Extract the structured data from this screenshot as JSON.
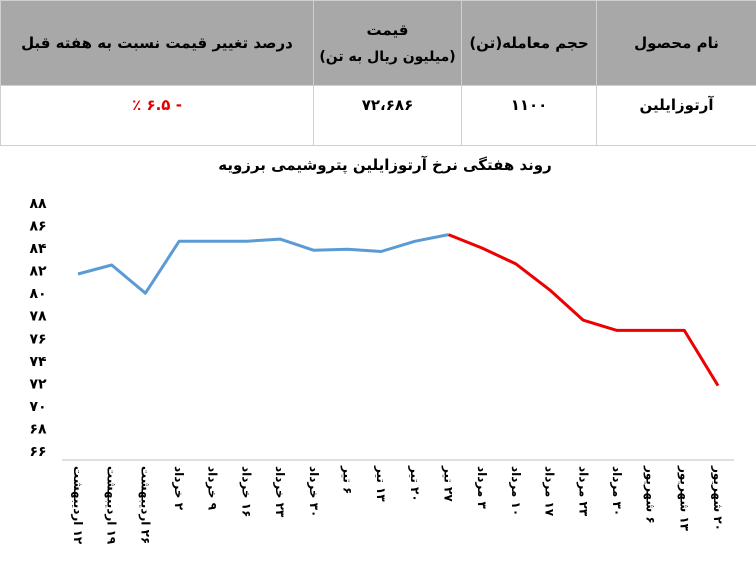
{
  "table": {
    "headers": {
      "product": "نام محصول",
      "volume": "حجم معامله(تن)",
      "price": "قیمت",
      "price_unit": "(میلیون ریال به تن)",
      "change": "درصد تغییر قیمت نسبت به هفته قبل"
    },
    "row": {
      "product": "آرتوزایلین",
      "volume": "۱۱۰۰",
      "price": "۷۲،۶۸۶",
      "change": "- ۶.۵ ٪"
    }
  },
  "chart_data": {
    "type": "line",
    "title": "روند هفتگی نرخ آرتوزایلین پتروشیمی برزویه",
    "categories": [
      "۱۲ اردیبهشت",
      "۱۹ اردیبهشت",
      "۲۶ اردیبهشت",
      "۲ خرداد",
      "۹ خرداد",
      "۱۶ خرداد",
      "۲۳ خرداد",
      "۳۰ خرداد",
      "۶ تیر",
      "۱۳ تیر",
      "۲۰ تیر",
      "۲۷ تیر",
      "۳ مرداد",
      "۱۰ مرداد",
      "۱۷ مرداد",
      "۲۳ مرداد",
      "۳۰ مرداد",
      "۶ شهریور",
      "۱۳ شهریور",
      "۲۰ شهریور"
    ],
    "values": [
      81.7,
      82.5,
      80.0,
      84.6,
      84.6,
      84.6,
      84.8,
      83.8,
      83.9,
      83.7,
      84.6,
      85.2,
      84.0,
      82.6,
      80.3,
      77.6,
      76.7,
      76.7,
      76.7,
      71.8
    ],
    "segment_colors": {
      "up_to_index": 11,
      "first": "#5b9bd5",
      "second": "#ee0000"
    },
    "ylim": [
      66,
      88
    ],
    "yticks": [
      "۶۶",
      "۶۸",
      "۷۰",
      "۷۲",
      "۷۴",
      "۷۶",
      "۷۸",
      "۸۰",
      "۸۲",
      "۸۴",
      "۸۶",
      "۸۸"
    ],
    "grid": false,
    "xlabel": "",
    "ylabel": ""
  }
}
